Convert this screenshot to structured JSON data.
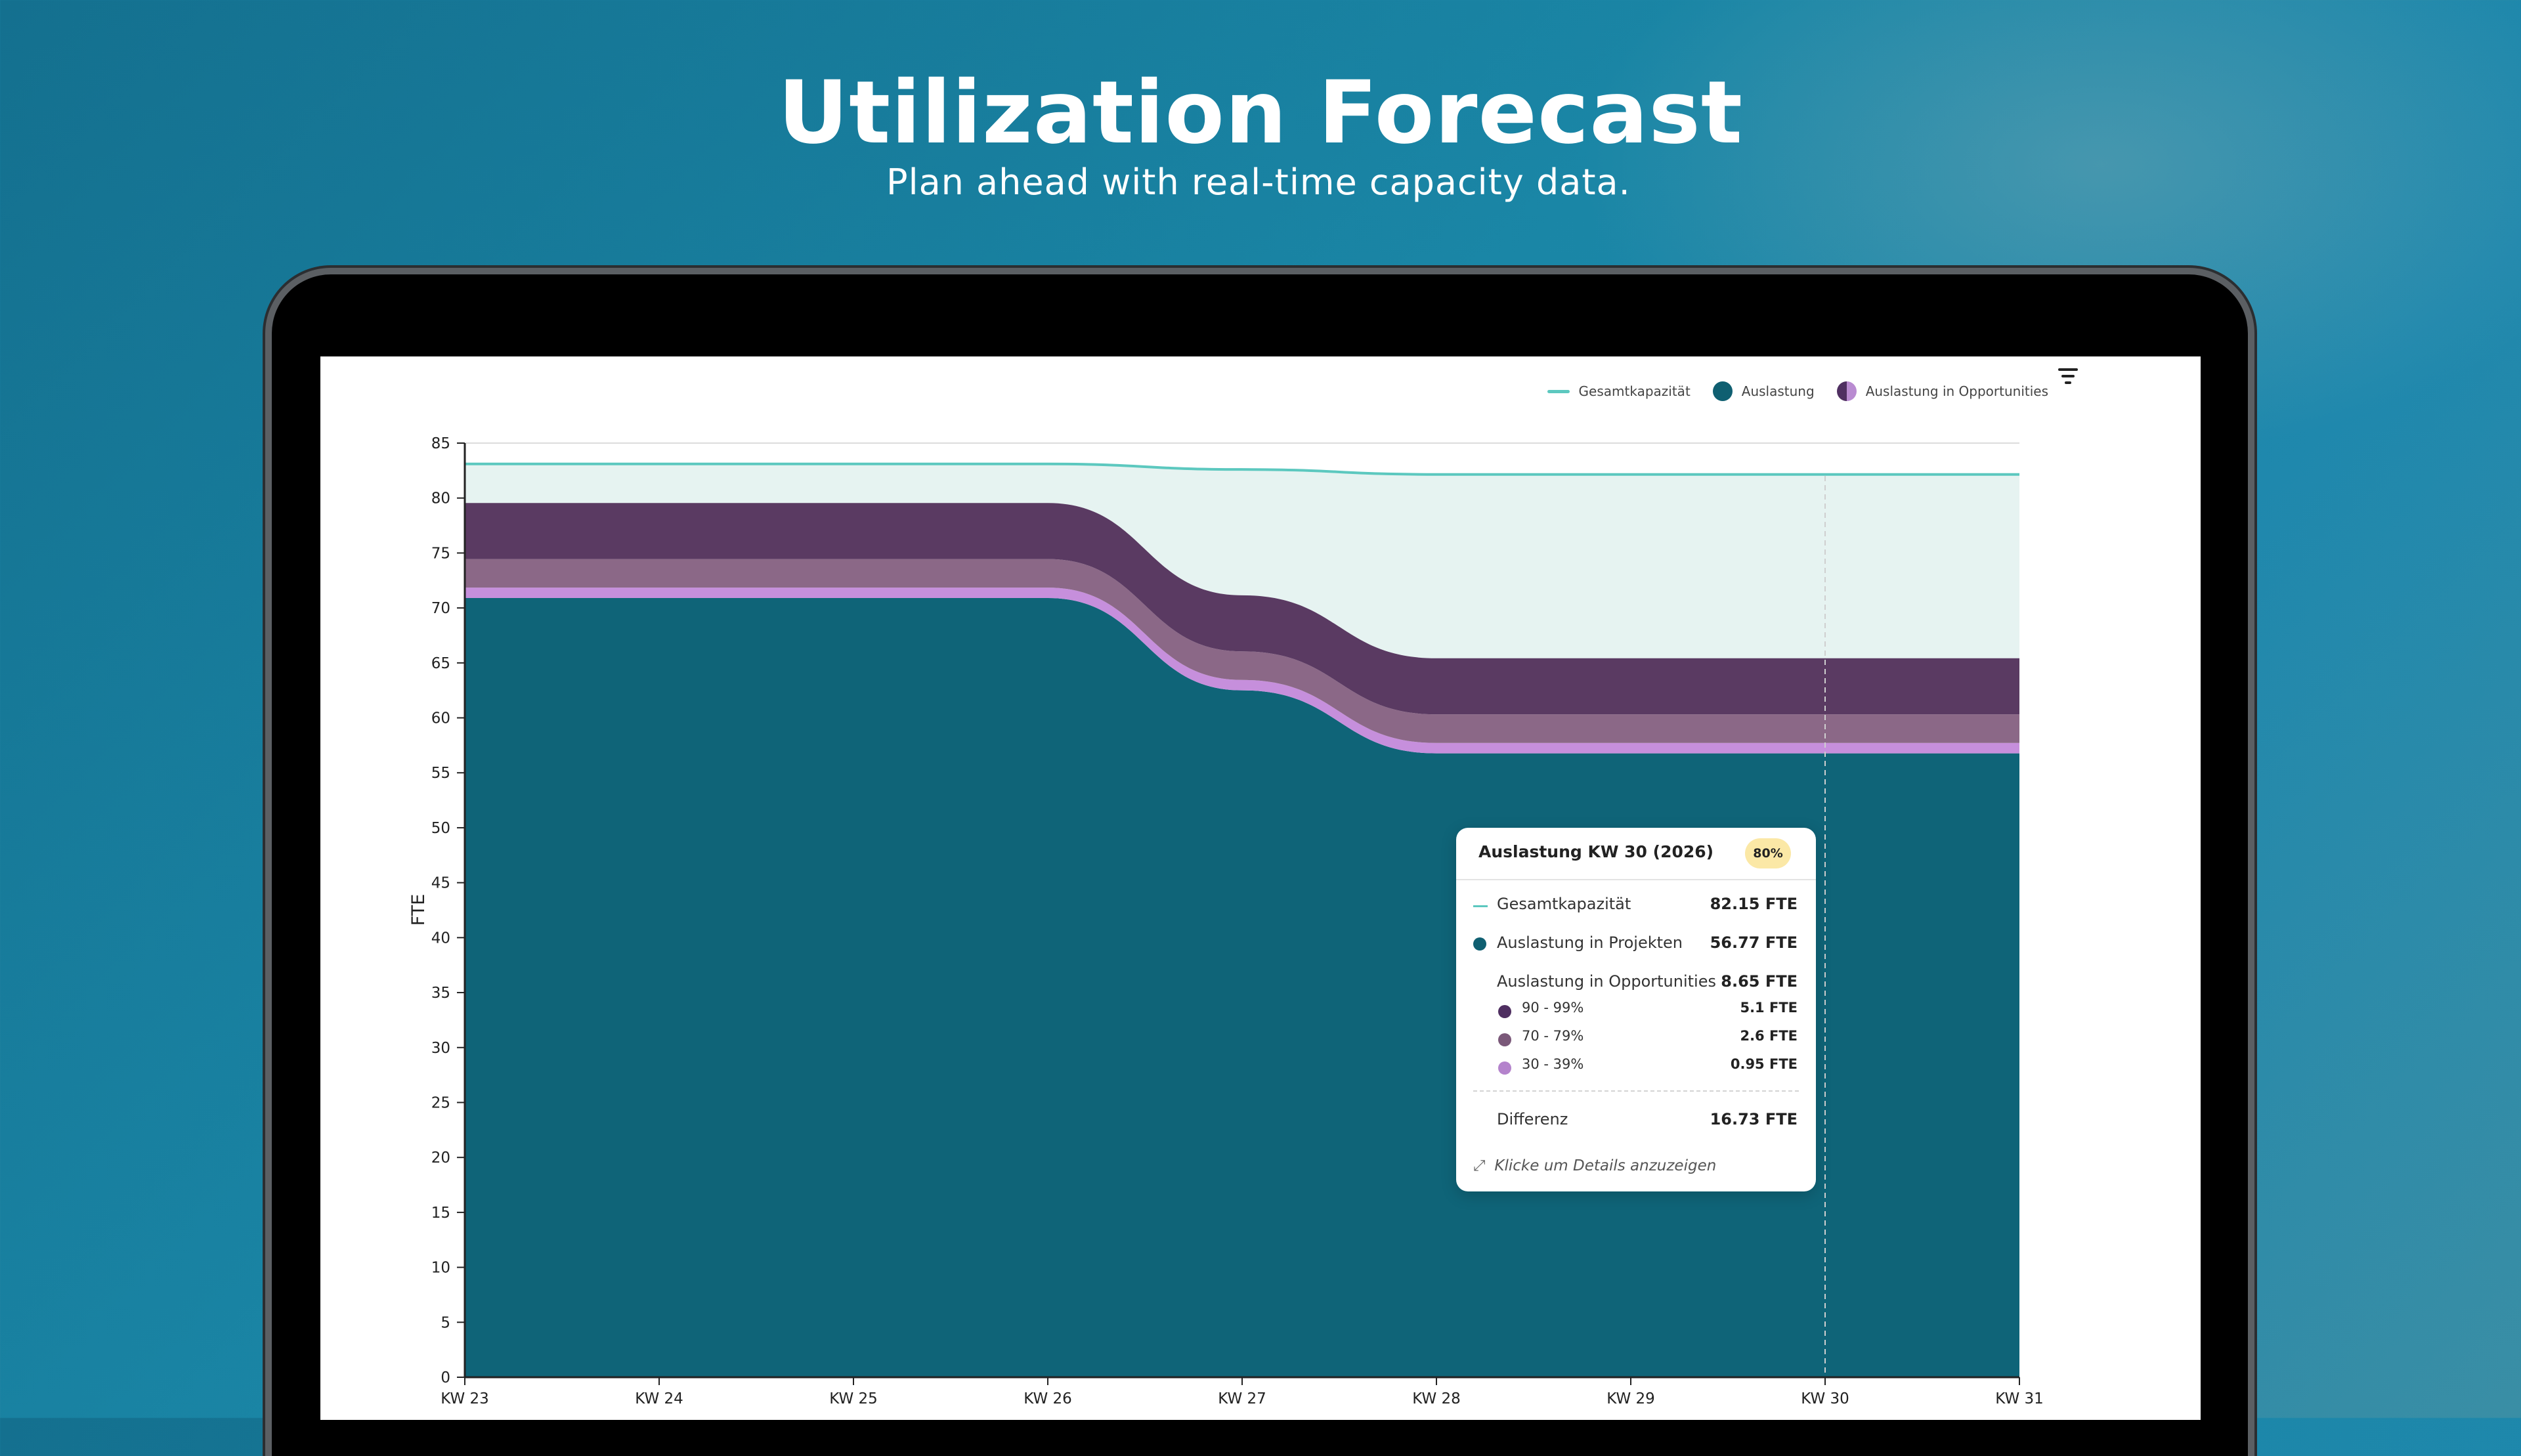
{
  "hero": {
    "title": "Utilization Forecast",
    "subtitle": "Plan ahead with real-time capacity data."
  },
  "legend": {
    "items": [
      {
        "label": "Gesamtkapazität",
        "color": "#5cc8bf"
      },
      {
        "label": "Auslastung",
        "color": "#0f5f71"
      },
      {
        "label": "Auslastung in Opportunities",
        "color": "#4f2f61"
      }
    ]
  },
  "icons": {
    "filter": "filter-icon",
    "expand": "expand-icon"
  },
  "chart_data": {
    "type": "area",
    "title": "",
    "xlabel": "",
    "ylabel": "FTE",
    "ylim": [
      0,
      85
    ],
    "yticks": [
      0,
      5,
      10,
      15,
      20,
      25,
      30,
      35,
      40,
      45,
      50,
      55,
      60,
      65,
      70,
      75,
      80,
      85
    ],
    "categories": [
      "KW 23",
      "KW 24",
      "KW 25",
      "KW 26",
      "KW 27",
      "KW 28",
      "KW 29",
      "KW 30",
      "KW 31"
    ],
    "capacity": {
      "name": "Gesamtkapazität",
      "color": "#5cc8bf",
      "values": [
        83.1,
        83.1,
        83.1,
        83.1,
        82.6,
        82.15,
        82.15,
        82.15,
        82.15
      ]
    },
    "series": [
      {
        "name": "Auslastung in Projekten",
        "color": "#0f6478",
        "values": [
          70.9,
          70.9,
          70.9,
          70.9,
          62.5,
          56.77,
          56.77,
          56.77,
          56.77
        ]
      },
      {
        "name": "30 - 39%",
        "color": "#c68fdc",
        "values": [
          0.95,
          0.95,
          0.95,
          0.95,
          0.95,
          0.95,
          0.95,
          0.95,
          0.95
        ]
      },
      {
        "name": "70 - 79%",
        "color": "#8b6887",
        "values": [
          2.6,
          2.6,
          2.6,
          2.6,
          2.6,
          2.6,
          2.6,
          2.6,
          2.6
        ]
      },
      {
        "name": "90 - 99%",
        "color": "#5a3a62",
        "values": [
          5.1,
          5.1,
          5.1,
          5.1,
          5.1,
          5.1,
          5.1,
          5.1,
          5.1
        ]
      }
    ],
    "highlight_category": "KW 30",
    "colors": {
      "free_capacity_fill": "#e6f3f1",
      "grid": "#dcdcdc",
      "axis": "#222222",
      "hover_line": "#cfcfcf"
    }
  },
  "tooltip": {
    "title": "Auslastung KW 30 (2026)",
    "badge": "80%",
    "capacity_label": "Gesamtkapazität",
    "capacity_value": "82.15 FTE",
    "projects_label": "Auslastung in Projekten",
    "projects_value": "56.77 FTE",
    "opportunities_label": "Auslastung in Opportunities",
    "opportunities_value": "8.65 FTE",
    "breakdown": [
      {
        "label": "90 - 99%",
        "value": "5.1 FTE",
        "color": "#4f2f61"
      },
      {
        "label": "70 - 79%",
        "value": "2.6 FTE",
        "color": "#7a5879"
      },
      {
        "label": "30 - 39%",
        "value": "0.95 FTE",
        "color": "#b483cc"
      }
    ],
    "difference_label": "Differenz",
    "difference_value": "16.73 FTE",
    "footer": "Klicke um Details anzuzeigen"
  }
}
